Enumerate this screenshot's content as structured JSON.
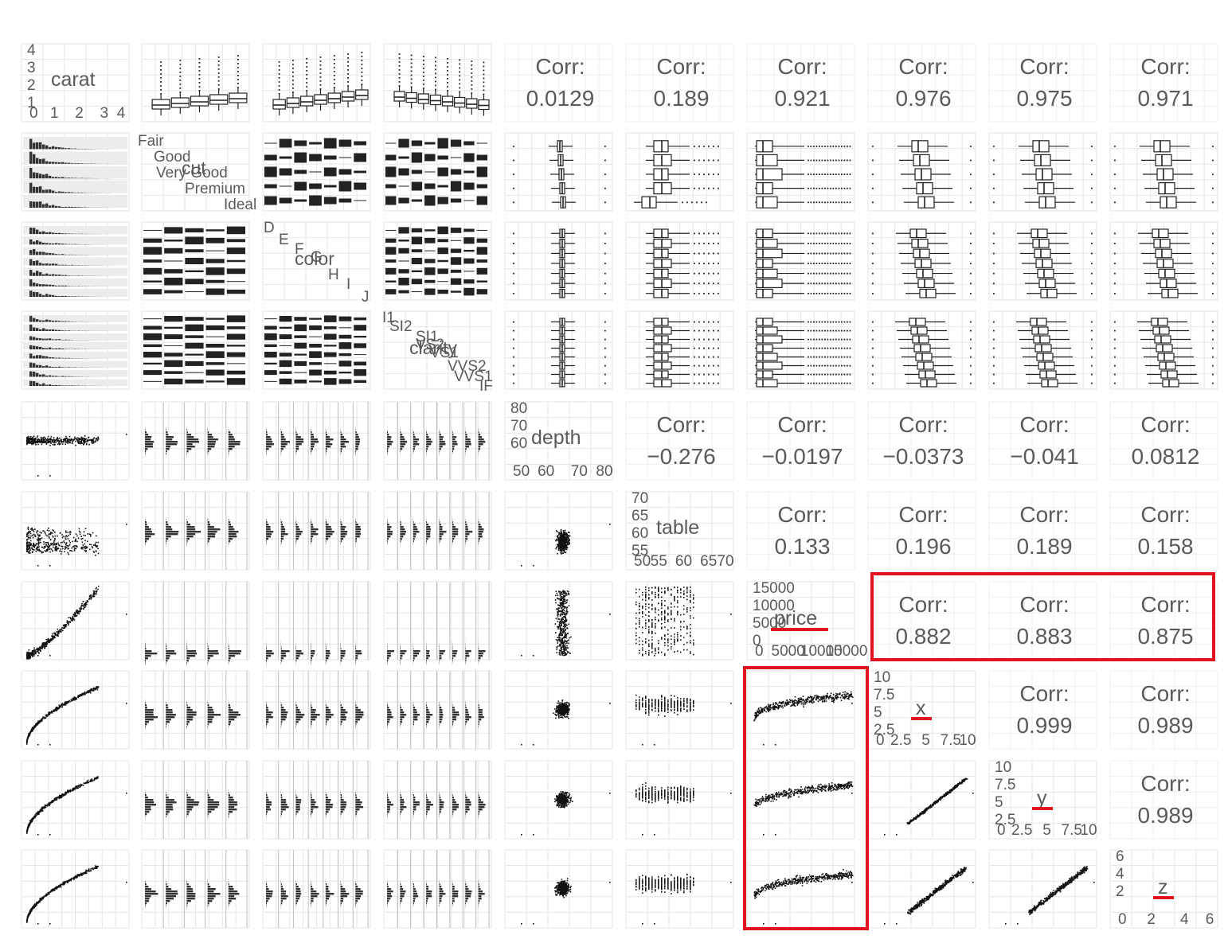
{
  "title": "",
  "variables": [
    "carat",
    "cut",
    "color",
    "clarity",
    "depth",
    "table",
    "price",
    "x",
    "y",
    "z"
  ],
  "diagonal": {
    "carat": {
      "ticks_y": [
        "4",
        "3",
        "2",
        "1"
      ],
      "ticks_x": [
        "0",
        "1",
        "2",
        "3",
        "4"
      ]
    },
    "cut": {
      "levels": [
        "Fair",
        "Good",
        "Very Good",
        "Premium",
        "Ideal"
      ]
    },
    "color": {
      "levels": [
        "D",
        "E",
        "F",
        "G",
        "H",
        "I",
        "J"
      ]
    },
    "clarity": {
      "levels": [
        "I1",
        "SI2",
        "SI1",
        "VS2",
        "VS1",
        "VVS2",
        "VVS1",
        "IF"
      ]
    },
    "depth": {
      "ticks_y": [
        "80",
        "70",
        "60"
      ],
      "ticks_x": [
        "50",
        "60",
        "70",
        "80"
      ]
    },
    "table": {
      "ticks_y": [
        "70",
        "65",
        "60",
        "55"
      ],
      "ticks_x": [
        "50",
        "55",
        "60",
        "65",
        "70"
      ]
    },
    "price": {
      "ticks_y": [
        "15000",
        "10000",
        "5000",
        "0"
      ],
      "ticks_x": [
        "0",
        "5000",
        "10000",
        "15000"
      ]
    },
    "x": {
      "ticks_y": [
        "10",
        "7.5",
        "5",
        "2.5"
      ],
      "ticks_x": [
        "0",
        "2.5",
        "5",
        "7.5",
        "10"
      ]
    },
    "y": {
      "ticks_y": [
        "10",
        "7.5",
        "5",
        "2.5"
      ],
      "ticks_x": [
        "0",
        "2.5",
        "5",
        "7.5",
        "10"
      ]
    },
    "z": {
      "ticks_y": [
        "6",
        "4",
        "2"
      ],
      "ticks_x": [
        "0",
        "2",
        "4",
        "6"
      ]
    }
  },
  "corr_label": "Corr:",
  "annotation_color": "#e0131f",
  "chart_data": {
    "type": "scatter",
    "matrix_type": "pairs",
    "variables": [
      "carat",
      "cut",
      "color",
      "clarity",
      "depth",
      "table",
      "price",
      "x",
      "y",
      "z"
    ],
    "correlations": [
      {
        "row": "carat",
        "col": "depth",
        "value": "0.0129"
      },
      {
        "row": "carat",
        "col": "table",
        "value": "0.189"
      },
      {
        "row": "carat",
        "col": "price",
        "value": "0.921"
      },
      {
        "row": "carat",
        "col": "x",
        "value": "0.976"
      },
      {
        "row": "carat",
        "col": "y",
        "value": "0.975"
      },
      {
        "row": "carat",
        "col": "z",
        "value": "0.971"
      },
      {
        "row": "depth",
        "col": "table",
        "value": "−0.276"
      },
      {
        "row": "depth",
        "col": "price",
        "value": "−0.0197"
      },
      {
        "row": "depth",
        "col": "x",
        "value": "−0.0373"
      },
      {
        "row": "depth",
        "col": "y",
        "value": "−0.041"
      },
      {
        "row": "depth",
        "col": "z",
        "value": "0.0812"
      },
      {
        "row": "table",
        "col": "price",
        "value": "0.133"
      },
      {
        "row": "table",
        "col": "x",
        "value": "0.196"
      },
      {
        "row": "table",
        "col": "y",
        "value": "0.189"
      },
      {
        "row": "table",
        "col": "z",
        "value": "0.158"
      },
      {
        "row": "price",
        "col": "x",
        "value": "0.882"
      },
      {
        "row": "price",
        "col": "y",
        "value": "0.883"
      },
      {
        "row": "price",
        "col": "z",
        "value": "0.875"
      },
      {
        "row": "x",
        "col": "y",
        "value": "0.999"
      },
      {
        "row": "x",
        "col": "z",
        "value": "0.989"
      },
      {
        "row": "y",
        "col": "z",
        "value": "0.989"
      }
    ],
    "highlights": [
      {
        "kind": "box",
        "cells": [
          {
            "row": "price",
            "col": "x"
          },
          {
            "row": "price",
            "col": "y"
          },
          {
            "row": "price",
            "col": "z"
          }
        ]
      },
      {
        "kind": "box",
        "cells": [
          {
            "row": "x",
            "col": "price"
          },
          {
            "row": "y",
            "col": "price"
          },
          {
            "row": "z",
            "col": "price"
          }
        ]
      },
      {
        "kind": "underline",
        "cells": [
          {
            "row": "price",
            "col": "price"
          },
          {
            "row": "x",
            "col": "x"
          },
          {
            "row": "y",
            "col": "y"
          },
          {
            "row": "z",
            "col": "z"
          }
        ]
      }
    ],
    "grid": true,
    "legend": "none"
  }
}
